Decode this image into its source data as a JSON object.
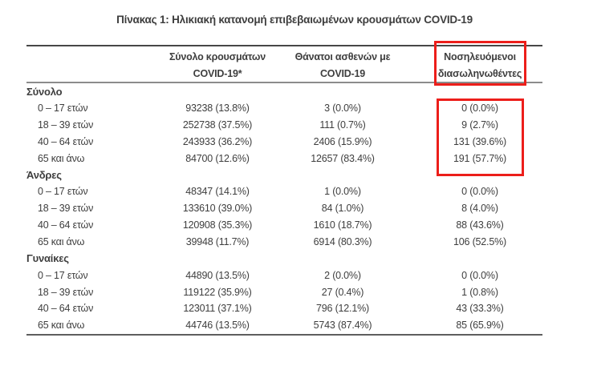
{
  "title": "Πίνακας 1: Ηλικιακή κατανομή επιβεβαιωμένων κρουσμάτων COVID-19",
  "accent_color": "#ec1e1a",
  "text_color": "#3e3e3e",
  "table": {
    "headers": [
      {
        "line1": "Σύνολο κρουσμάτων",
        "line2": "COVID-19*"
      },
      {
        "line1": "Θάνατοι ασθενών με",
        "line2": "COVID-19"
      },
      {
        "line1": "Νοσηλευόμενοι",
        "line2": "διασωληνωθέντες",
        "highlighted": true
      }
    ],
    "sections": [
      {
        "label": "Σύνολο",
        "intubated_column_highlighted": true,
        "rows": [
          {
            "age": "0 – 17 ετών",
            "cases": "93238 (13.8%)",
            "deaths": "3 (0.0%)",
            "intubated": "0 (0.0%)"
          },
          {
            "age": "18 – 39 ετών",
            "cases": "252738 (37.5%)",
            "deaths": "111 (0.7%)",
            "intubated": "9 (2.7%)"
          },
          {
            "age": "40 – 64 ετών",
            "cases": "243933 (36.2%)",
            "deaths": "2406 (15.9%)",
            "intubated": "131 (39.6%)"
          },
          {
            "age": "65 και άνω",
            "cases": "84700 (12.6%)",
            "deaths": "12657 (83.4%)",
            "intubated": "191 (57.7%)"
          }
        ]
      },
      {
        "label": "Άνδρες",
        "intubated_column_highlighted": false,
        "rows": [
          {
            "age": "0 – 17 ετών",
            "cases": "48347 (14.1%)",
            "deaths": "1 (0.0%)",
            "intubated": "0 (0.0%)"
          },
          {
            "age": "18 – 39 ετών",
            "cases": "133610 (39.0%)",
            "deaths": "84 (1.0%)",
            "intubated": "8 (4.0%)"
          },
          {
            "age": "40 – 64 ετών",
            "cases": "120908 (35.3%)",
            "deaths": "1610 (18.7%)",
            "intubated": "88 (43.6%)"
          },
          {
            "age": "65 και άνω",
            "cases": "39948 (11.7%)",
            "deaths": "6914 (80.3%)",
            "intubated": "106 (52.5%)"
          }
        ]
      },
      {
        "label": "Γυναίκες",
        "intubated_column_highlighted": false,
        "rows": [
          {
            "age": "0 – 17 ετών",
            "cases": "44890 (13.5%)",
            "deaths": "2 (0.0%)",
            "intubated": "0 (0.0%)"
          },
          {
            "age": "18 – 39 ετών",
            "cases": "119122 (35.9%)",
            "deaths": "27 (0.4%)",
            "intubated": "1 (0.8%)"
          },
          {
            "age": "40 – 64 ετών",
            "cases": "123011 (37.1%)",
            "deaths": "796 (12.1%)",
            "intubated": "43 (33.3%)"
          },
          {
            "age": "65 και άνω",
            "cases": "44746 (13.5%)",
            "deaths": "5743 (87.4%)",
            "intubated": "85 (65.9%)"
          }
        ]
      }
    ]
  }
}
